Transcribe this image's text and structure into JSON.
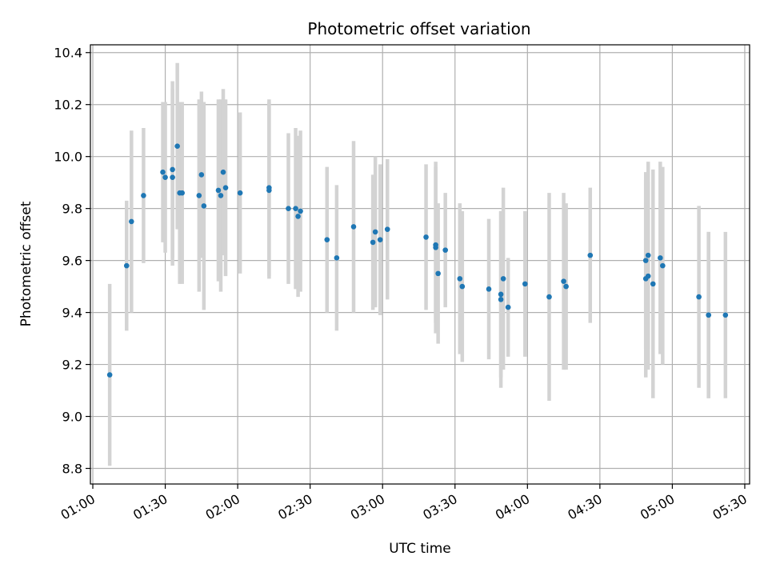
{
  "chart_data": {
    "type": "scatter",
    "title": "Photometric offset variation",
    "xlabel": "UTC time",
    "ylabel": "Photometric offset",
    "x_ticks": [
      "01:00",
      "01:30",
      "02:00",
      "02:30",
      "03:00",
      "03:30",
      "04:00",
      "04:30",
      "05:00",
      "05:30"
    ],
    "x_range": [
      "00:59",
      "05:32"
    ],
    "y_ticks": [
      "8.8",
      "9.0",
      "9.2",
      "9.4",
      "9.6",
      "9.8",
      "10.0",
      "10.2",
      "10.4"
    ],
    "ylim": [
      8.74,
      10.43
    ],
    "grid": true,
    "colors": {
      "points": "#1f77b4",
      "errorbars": "#d3d3d3",
      "grid": "#b0b0b0"
    },
    "series": [
      {
        "x": [
          "01:07",
          "01:14",
          "01:16",
          "01:21",
          "01:29",
          "01:30",
          "01:33",
          "01:33",
          "01:35",
          "01:36",
          "01:37",
          "01:44",
          "01:45",
          "01:46",
          "01:52",
          "01:53",
          "01:54",
          "01:55",
          "02:01",
          "02:13",
          "02:13",
          "02:21",
          "02:24",
          "02:25",
          "02:26",
          "02:37",
          "02:41",
          "02:48",
          "02:56",
          "02:57",
          "02:59",
          "03:02",
          "03:18",
          "03:22",
          "03:22",
          "03:23",
          "03:26",
          "03:32",
          "03:33",
          "03:44",
          "03:49",
          "03:49",
          "03:50",
          "03:52",
          "03:59",
          "04:09",
          "04:15",
          "04:16",
          "04:26",
          "04:49",
          "04:49",
          "04:50",
          "04:50",
          "04:52",
          "04:55",
          "04:56",
          "05:11",
          "05:15",
          "05:15",
          "05:22"
        ],
        "y": [
          9.16,
          9.58,
          9.75,
          9.85,
          9.94,
          9.92,
          9.95,
          9.92,
          10.04,
          9.86,
          9.86,
          9.85,
          9.93,
          9.81,
          9.87,
          9.85,
          9.94,
          9.88,
          9.86,
          9.88,
          9.87,
          9.8,
          9.8,
          9.77,
          9.79,
          9.68,
          9.61,
          9.73,
          9.67,
          9.71,
          9.68,
          9.72,
          9.69,
          9.66,
          9.65,
          9.55,
          9.64,
          9.53,
          9.5,
          9.49,
          9.45,
          9.47,
          9.53,
          9.42,
          9.51,
          9.46,
          9.52,
          9.5,
          9.62,
          9.53,
          9.6,
          9.62,
          9.54,
          9.51,
          9.61,
          9.58,
          9.46,
          9.39,
          9.39,
          9.39
        ],
        "err": [
          0.35,
          0.25,
          0.35,
          0.26,
          0.27,
          0.29,
          0.34,
          0.34,
          0.32,
          0.35,
          0.35,
          0.37,
          0.32,
          0.4,
          0.35,
          0.37,
          0.32,
          0.34,
          0.31,
          0.34,
          0.34,
          0.29,
          0.31,
          0.31,
          0.31,
          0.28,
          0.28,
          0.33,
          0.26,
          0.29,
          0.29,
          0.27,
          0.28,
          0.3,
          0.33,
          0.27,
          0.22,
          0.29,
          0.29,
          0.27,
          0.34,
          0.32,
          0.35,
          0.19,
          0.28,
          0.4,
          0.34,
          0.32,
          0.26,
          0.38,
          0.34,
          0.36,
          0.36,
          0.44,
          0.37,
          0.38,
          0.35,
          0.32,
          0.32,
          0.32
        ]
      }
    ]
  }
}
